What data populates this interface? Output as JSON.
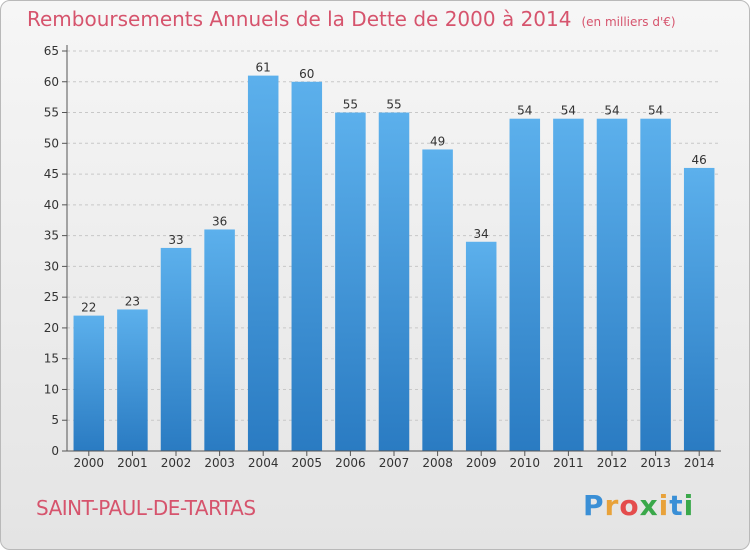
{
  "header": {
    "title": "Remboursements Annuels de la Dette de 2000 à 2014",
    "unit": "(en milliers d'€)"
  },
  "footer": {
    "town": "SAINT-PAUL-DE-TARTAS",
    "logo_letters": [
      "P",
      "r",
      "o",
      "x",
      "i",
      "t",
      "i"
    ],
    "logo_colors": [
      "#3a8fd6",
      "#e8a23a",
      "#e44c4c",
      "#3aa84a",
      "#e8a23a",
      "#3a8fd6",
      "#3aa84a"
    ]
  },
  "chart_data": {
    "type": "bar",
    "categories": [
      "2000",
      "2001",
      "2002",
      "2003",
      "2004",
      "2005",
      "2006",
      "2007",
      "2008",
      "2009",
      "2010",
      "2011",
      "2012",
      "2013",
      "2014"
    ],
    "values": [
      22,
      23,
      33,
      36,
      61,
      60,
      55,
      55,
      49,
      34,
      54,
      54,
      54,
      54,
      46
    ],
    "yticks": [
      0,
      5,
      10,
      15,
      20,
      25,
      30,
      35,
      40,
      45,
      50,
      55,
      60,
      65
    ],
    "ylim": [
      0,
      65
    ],
    "grid": true,
    "bar_color_top": "#5cb0ec",
    "bar_color_bottom": "#2a7bc2"
  }
}
